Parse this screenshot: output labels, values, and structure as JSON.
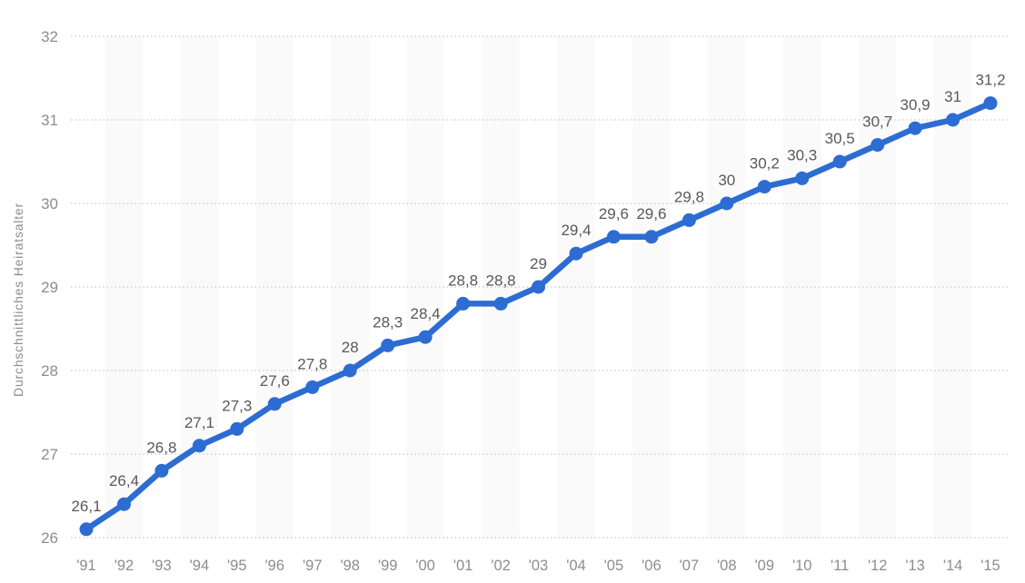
{
  "chart_data": {
    "type": "line",
    "title": "",
    "xlabel": "",
    "ylabel": "Durchschnittliches Heiratsalter",
    "categories": [
      "'91",
      "'92",
      "'93",
      "'94",
      "'95",
      "'96",
      "'97",
      "'98",
      "'99",
      "'00",
      "'01",
      "'02",
      "'03",
      "'04",
      "'05",
      "'06",
      "'07",
      "'08",
      "'09",
      "'10",
      "'11",
      "'12",
      "'13",
      "'14",
      "'15"
    ],
    "values": [
      26.1,
      26.4,
      26.8,
      27.1,
      27.3,
      27.6,
      27.8,
      28,
      28.3,
      28.4,
      28.8,
      28.8,
      29,
      29.4,
      29.6,
      29.6,
      29.8,
      30,
      30.2,
      30.3,
      30.5,
      30.7,
      30.9,
      31,
      31.2
    ],
    "point_labels": [
      "26,1",
      "26,4",
      "26,8",
      "27,1",
      "27,3",
      "27,6",
      "27,8",
      "28",
      "28,3",
      "28,4",
      "28,8",
      "28,8",
      "29",
      "29,4",
      "29,6",
      "29,6",
      "29,8",
      "30",
      "30,2",
      "30,3",
      "30,5",
      "30,7",
      "30,9",
      "31",
      "31,2"
    ],
    "ylim": [
      26,
      32
    ],
    "yticks": [
      26,
      27,
      28,
      29,
      30,
      31,
      32
    ],
    "grid": "horizontal-dotted",
    "legend": "none",
    "band_pattern": "alternating-vertical-on-even-years",
    "colors": {
      "line": "#2d6cd2",
      "marker": "#2d6cd2",
      "band": "#fafafa",
      "gridline": "#cccccc",
      "tick_label": "#8d8d8d",
      "axis_title": "#8d8d8d",
      "data_label": "#59595b",
      "background": "#ffffff"
    }
  }
}
